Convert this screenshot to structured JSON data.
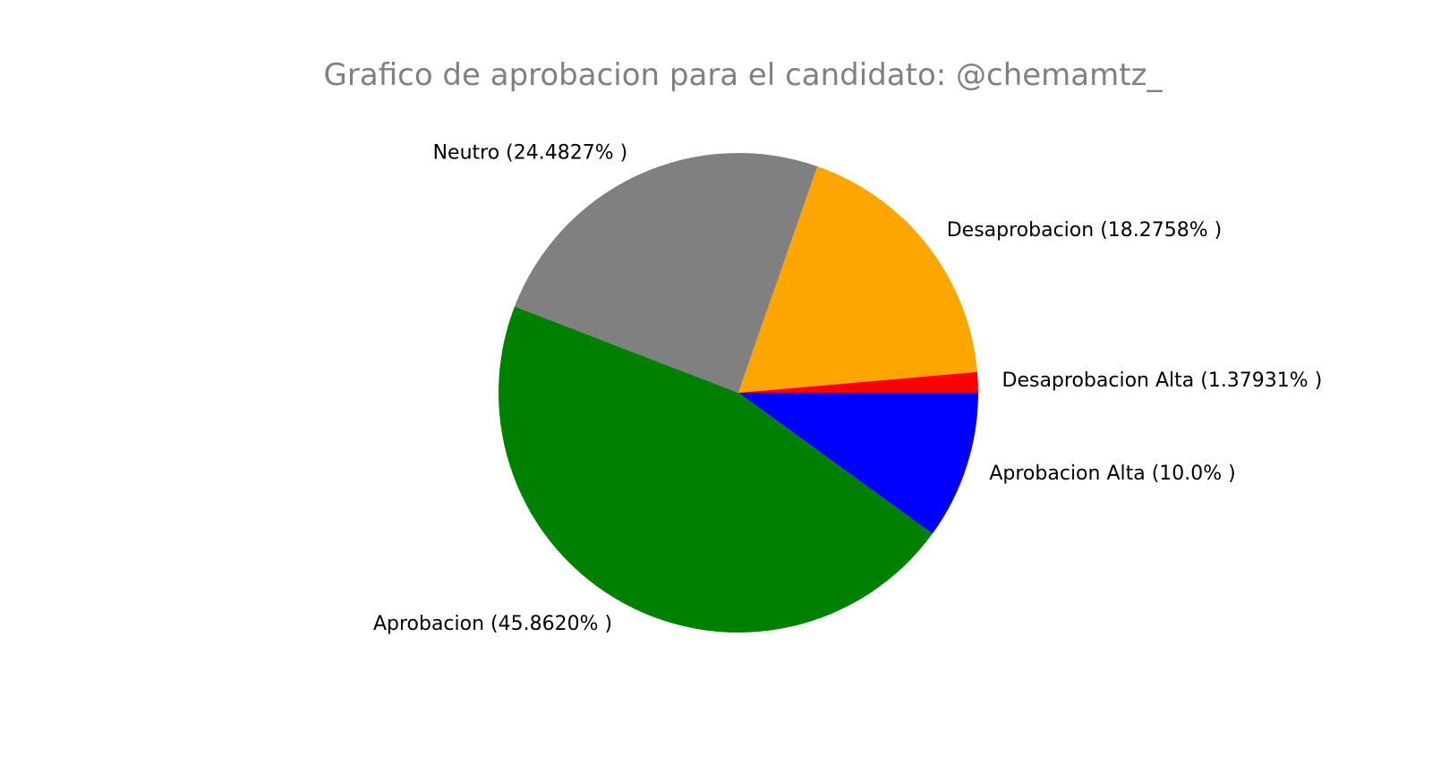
{
  "chart_data": {
    "type": "pie",
    "title": "Grafico de aprobacion para el candidato: @chemamtz_",
    "slices": [
      {
        "label": "Aprobacion Alta (10.0% )",
        "value": 10.0,
        "color": "#0000ff"
      },
      {
        "label": "Aprobacion (45.8620% )",
        "value": 45.862,
        "color": "#008000"
      },
      {
        "label": "Neutro (24.4827% )",
        "value": 24.4827,
        "color": "#808080"
      },
      {
        "label": "Desaprobacion (18.2758% )",
        "value": 18.2758,
        "color": "#ffa500"
      },
      {
        "label": "Desaprobacion Alta (1.37931% )",
        "value": 1.37931,
        "color": "#ff0000"
      }
    ],
    "start_angle_deg": 0,
    "direction": "clockwise",
    "legend": "none"
  }
}
